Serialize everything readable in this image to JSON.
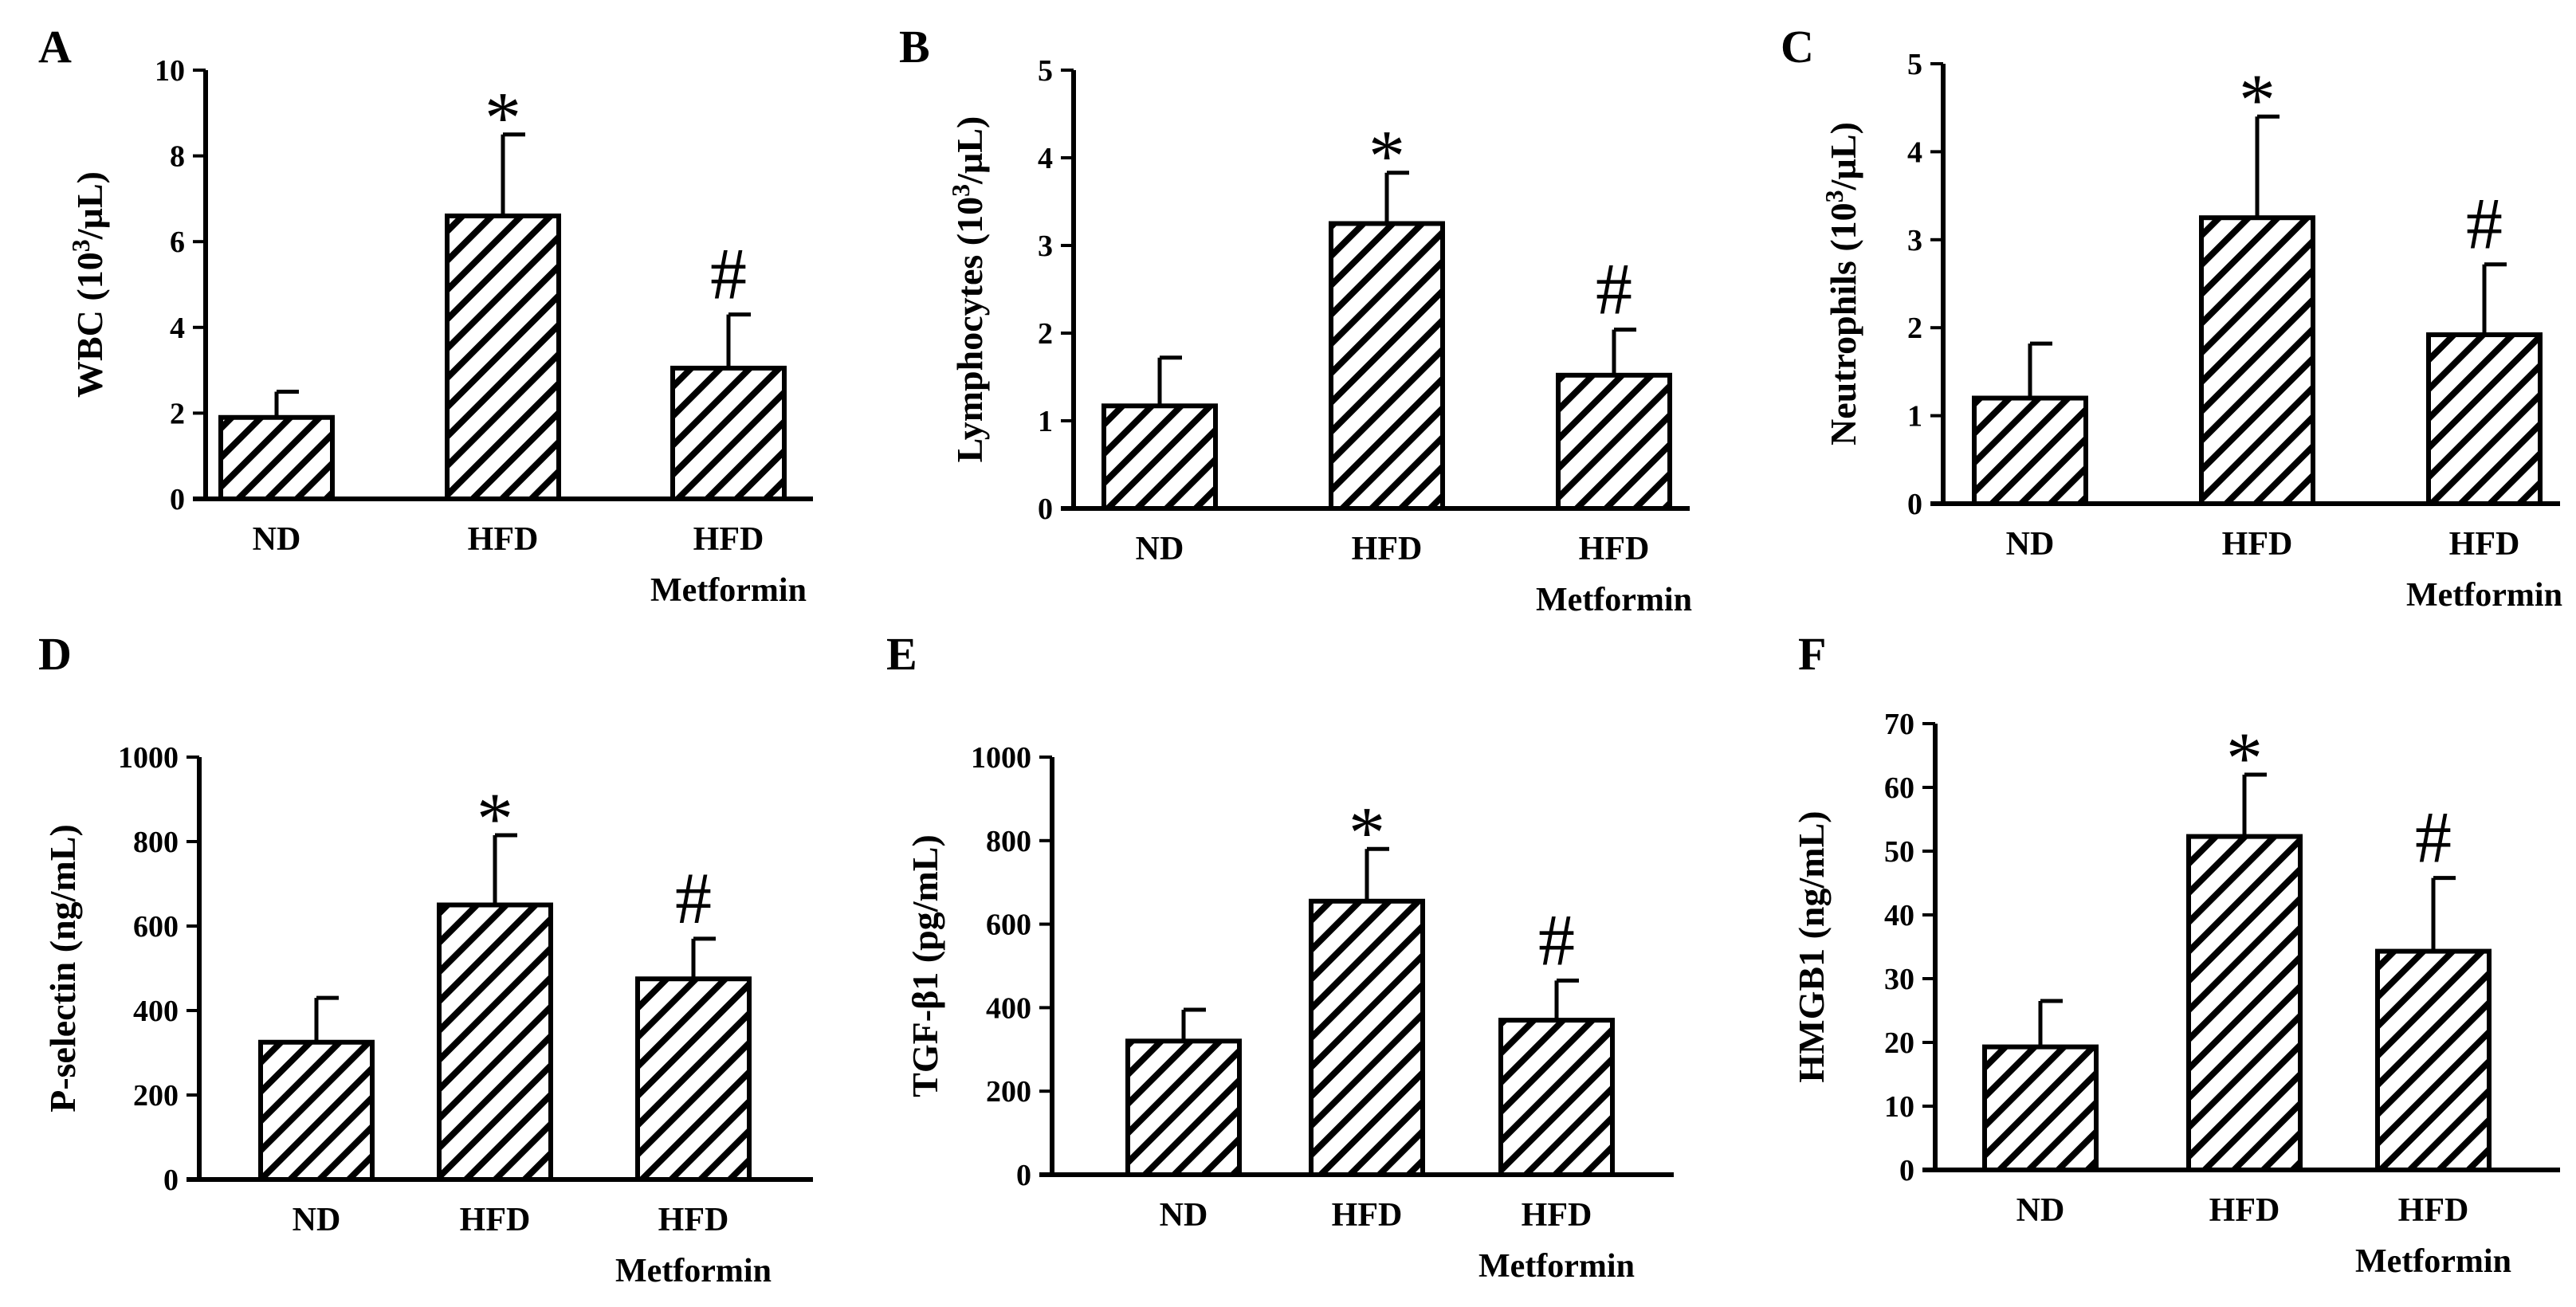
{
  "figure": {
    "categories": [
      "ND",
      "HFD",
      "HFD"
    ],
    "category_sublabels": [
      "",
      "",
      "Metformin"
    ]
  },
  "chart_data": [
    {
      "type": "bar",
      "panel": "A",
      "ylabel_main": "WBC (10",
      "ylabel_sup": "3",
      "ylabel_end": "/µL)",
      "categories": [
        "ND",
        "HFD",
        "HFD Metformin"
      ],
      "values": [
        1.9,
        6.6,
        3.05
      ],
      "errors": [
        0.6,
        1.9,
        1.25
      ],
      "ylim": [
        0,
        10
      ],
      "yticks": [
        0,
        2,
        4,
        6,
        8,
        10
      ],
      "markers": [
        "",
        "*",
        "#"
      ]
    },
    {
      "type": "bar",
      "panel": "B",
      "ylabel_main": "Lymphocytes (10",
      "ylabel_sup": "3",
      "ylabel_end": "/µL)",
      "categories": [
        "ND",
        "HFD",
        "HFD Metformin"
      ],
      "values": [
        1.17,
        3.25,
        1.52
      ],
      "errors": [
        0.55,
        0.58,
        0.52
      ],
      "ylim": [
        0,
        5
      ],
      "yticks": [
        0,
        1,
        2,
        3,
        4,
        5
      ],
      "markers": [
        "",
        "*",
        "#"
      ]
    },
    {
      "type": "bar",
      "panel": "C",
      "ylabel_main": "Neutrophils (10",
      "ylabel_sup": "3",
      "ylabel_end": "/µL)",
      "categories": [
        "ND",
        "HFD",
        "HFD Metformin"
      ],
      "values": [
        1.2,
        3.25,
        1.92
      ],
      "errors": [
        0.62,
        1.15,
        0.8
      ],
      "ylim": [
        0,
        5
      ],
      "yticks": [
        0,
        1,
        2,
        3,
        4,
        5
      ],
      "markers": [
        "",
        "*",
        "#"
      ]
    },
    {
      "type": "bar",
      "panel": "D",
      "ylabel_main": "P-selectin (ng/mL)",
      "ylabel_sup": "",
      "ylabel_end": "",
      "categories": [
        "ND",
        "HFD",
        "HFD Metformin"
      ],
      "values": [
        325,
        650,
        475
      ],
      "errors": [
        105,
        165,
        95
      ],
      "ylim": [
        0,
        1000
      ],
      "yticks": [
        0,
        200,
        400,
        600,
        800,
        1000
      ],
      "markers": [
        "",
        "*",
        "#"
      ]
    },
    {
      "type": "bar",
      "panel": "E",
      "ylabel_main": "TGF-β1 (pg/mL)",
      "ylabel_sup": "",
      "ylabel_end": "",
      "categories": [
        "ND",
        "HFD",
        "HFD Metformin"
      ],
      "values": [
        320,
        655,
        370
      ],
      "errors": [
        75,
        125,
        95
      ],
      "ylim": [
        0,
        1000
      ],
      "yticks": [
        0,
        200,
        400,
        600,
        800,
        1000
      ],
      "markers": [
        "",
        "*",
        "#"
      ]
    },
    {
      "type": "bar",
      "panel": "F",
      "ylabel_main": "HMGB1 (ng/mL)",
      "ylabel_sup": "",
      "ylabel_end": "",
      "categories": [
        "ND",
        "HFD",
        "HFD Metformin"
      ],
      "values": [
        19.3,
        52.3,
        34.3
      ],
      "errors": [
        7.2,
        9.7,
        11.5
      ],
      "ylim": [
        0,
        70
      ],
      "yticks": [
        0,
        10,
        20,
        30,
        40,
        50,
        60,
        70
      ],
      "markers": [
        "",
        "*",
        "#"
      ]
    }
  ]
}
